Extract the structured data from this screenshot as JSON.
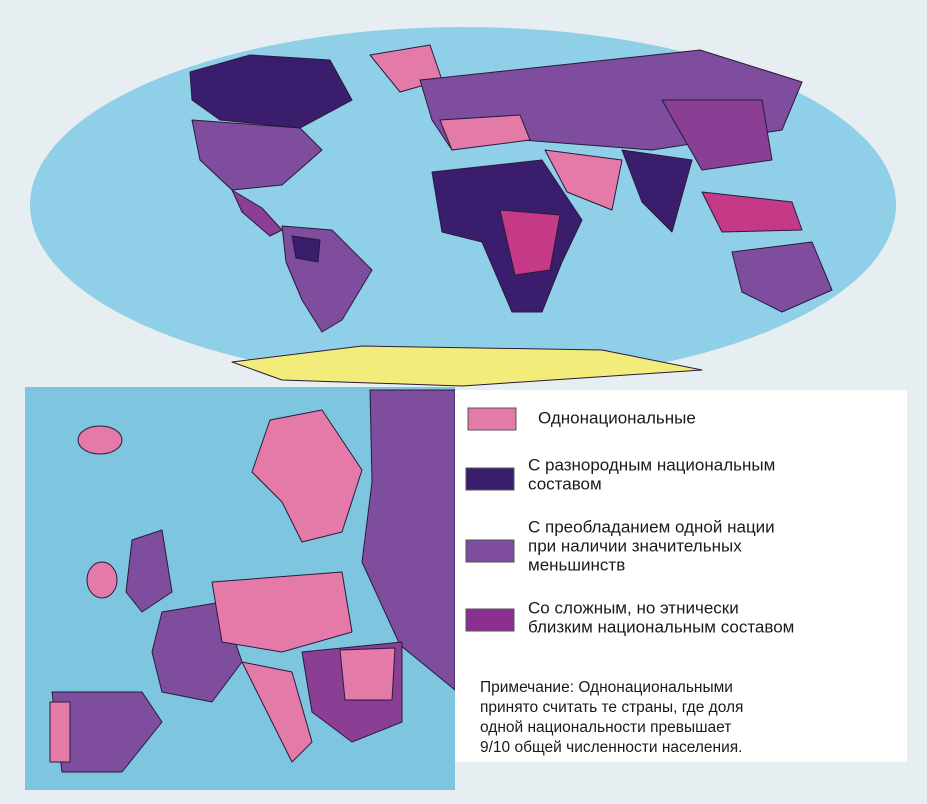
{
  "legend": {
    "items": [
      {
        "label": [
          "Однонациональные"
        ]
      },
      {
        "label": [
          "С разнородным национальным",
          "составом"
        ]
      },
      {
        "label": [
          "С преобладанием одной нации",
          "при наличии значительных",
          "меньшинств"
        ]
      },
      {
        "label": [
          "Со сложным, но этнически",
          "близким национальным составом"
        ]
      }
    ]
  },
  "note": [
    "Примечание: Однонациональными",
    "принято считать те страны, где доля",
    "одной национальности превышает",
    "9/10  общей численности населения."
  ]
}
